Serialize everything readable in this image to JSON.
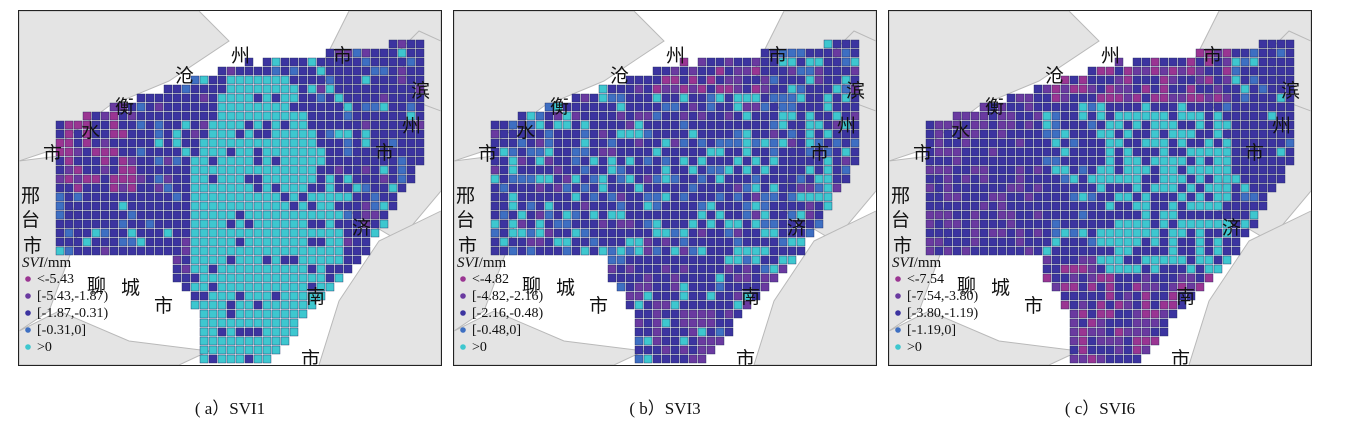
{
  "colors": {
    "class1": "#9a3592",
    "class2": "#6a3aa0",
    "class3": "#3c34a0",
    "class4": "#3e6fc2",
    "class5": "#3ec7cf",
    "basemap": "#e4e4e4",
    "basemap_edge": "#b9b9b9",
    "cell_edge": "#22285c"
  },
  "map_labels": [
    "沧",
    "州",
    "市",
    "滨",
    "州",
    "市",
    "衡",
    "水",
    "市",
    "邢",
    "台",
    "市",
    "聊",
    "城",
    "市",
    "济",
    "南",
    "市"
  ],
  "panels": [
    {
      "caption": "( a）SVI1",
      "legend_title_var": "SVI",
      "legend_title_unit": "/mm",
      "legend": [
        "<-5.43",
        "[-5.43,-1.87)",
        "[-1.87,-0.31)",
        "[-0.31,0]",
        ">0"
      ],
      "pattern": "cyan-core"
    },
    {
      "caption": "( b）SVI3",
      "legend_title_var": "SVI",
      "legend_title_unit": "/mm",
      "legend": [
        "<-4.82",
        "[-4.82,-2.16)",
        "[-2.16,-0.48)",
        "[-0.48,0]",
        ">0"
      ],
      "pattern": "mixed-blue"
    },
    {
      "caption": "( c）SVI6",
      "legend_title_var": "SVI",
      "legend_title_unit": "/mm",
      "legend": [
        "<-7.54",
        "[-7.54,-3.80)",
        "[-3.80,-1.19)",
        "[-1.19,0]",
        ">0"
      ],
      "pattern": "purple-rim"
    }
  ]
}
